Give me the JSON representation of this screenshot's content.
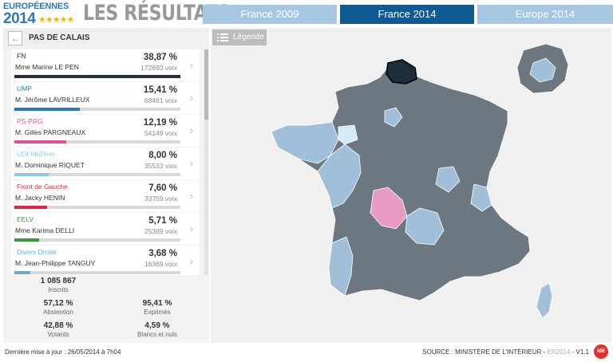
{
  "header": {
    "logo_top": "EUROPÉENNES",
    "logo_year": "2014",
    "logo_stars": "★★★★★",
    "title": "LES RÉSULTATS",
    "tabs": [
      {
        "label": "France 2009",
        "active": false
      },
      {
        "label": "France 2014",
        "active": true
      },
      {
        "label": "Europe 2014",
        "active": false
      }
    ]
  },
  "department": {
    "back_icon": "arrow-left-icon",
    "back_glyph": "←",
    "name": "PAS DE CALAIS"
  },
  "candidates": [
    {
      "party": "FN",
      "party_color": "#222f3e",
      "name": "Mme Marine LE PEN",
      "pct": "38,87 %",
      "votes": "172693 voix",
      "share": 38.87
    },
    {
      "party": "UMP",
      "party_color": "#2f79b6",
      "name": "M. Jérôme LAVRILLEUX",
      "pct": "15,41 %",
      "votes": "68481 voix",
      "share": 15.41
    },
    {
      "party": "PS-PRG",
      "party_color": "#e2509a",
      "name": "M. Gilles PARGNEAUX",
      "pct": "12,19 %",
      "votes": "54149 voix",
      "share": 12.19
    },
    {
      "party": "UDI-MoDem",
      "party_color": "#8ec9e8",
      "name": "M. Dominique RIQUET",
      "pct": "8,00 %",
      "votes": "35533 voix",
      "share": 8.0
    },
    {
      "party": "Front de Gauche",
      "party_color": "#d9263f",
      "name": "M. Jacky HENIN",
      "pct": "7,60 %",
      "votes": "33759 voix",
      "share": 7.6
    },
    {
      "party": "EELV",
      "party_color": "#3c9a3c",
      "name": "Mme Karima DELLI",
      "pct": "5,71 %",
      "votes": "25389 voix",
      "share": 5.71
    },
    {
      "party": "Divers Droite",
      "party_color": "#6aa8d8",
      "name": "M. Jean-Philippe TANGUY",
      "pct": "3,68 %",
      "votes": "16369 voix",
      "share": 3.68
    }
  ],
  "chevron_glyph": "›",
  "stats": {
    "inscrits": {
      "value": "1 085 867",
      "label": "Inscrits"
    },
    "abstention": {
      "value": "57,12 %",
      "label": "Abstention"
    },
    "exprimes": {
      "value": "95,41 %",
      "label": "Exprimés"
    },
    "votants": {
      "value": "42,88 %",
      "label": "Votants"
    },
    "blancs": {
      "value": "4,59 %",
      "label": "Blancs et nuls"
    }
  },
  "map": {
    "legend_label": "Légende",
    "legend_icon": "list-icon",
    "colors": {
      "fn": "#6d7780",
      "ump": "#a2bfd9",
      "ps": "#e89cc3",
      "udi": "#d2ebf5",
      "selected": "#1e2d3b",
      "border": "#ffffff"
    }
  },
  "footer": {
    "last_update": "Dernière mise à jour : 26/05/2014 à 7h04",
    "source": "SOURCE : MINISTÈRE DE L'INTÉRIEUR - ",
    "source_grey": "ER2014",
    "version": " - V1.1",
    "logo": "idé"
  }
}
